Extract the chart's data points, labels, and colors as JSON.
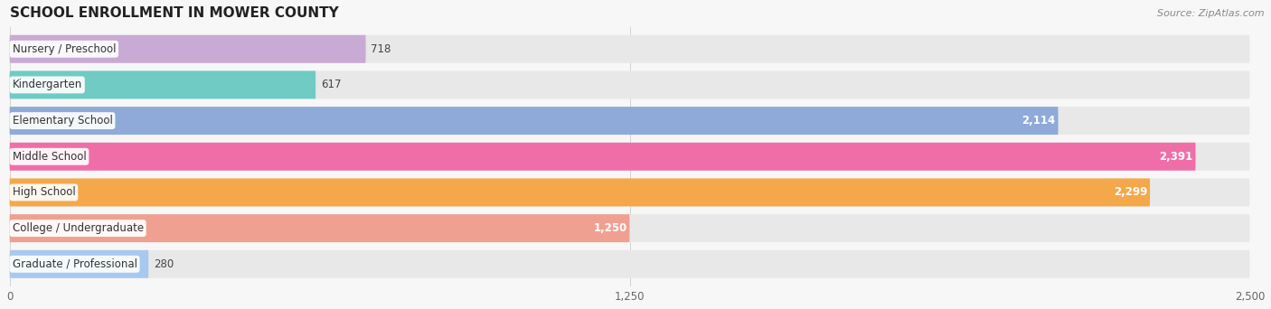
{
  "title": "SCHOOL ENROLLMENT IN MOWER COUNTY",
  "source": "Source: ZipAtlas.com",
  "categories": [
    "Nursery / Preschool",
    "Kindergarten",
    "Elementary School",
    "Middle School",
    "High School",
    "College / Undergraduate",
    "Graduate / Professional"
  ],
  "values": [
    718,
    617,
    2114,
    2391,
    2299,
    1250,
    280
  ],
  "colors": [
    "#c9aad4",
    "#6fcbc4",
    "#8faad8",
    "#f06ea8",
    "#f5a84a",
    "#f0a090",
    "#a8c8f0"
  ],
  "xlim_max": 2500,
  "xticks": [
    0,
    1250,
    2500
  ],
  "background_color": "#f7f7f7",
  "bar_bg_color": "#e8e8e8",
  "title_fontsize": 11,
  "label_fontsize": 8.5,
  "value_fontsize": 8.5,
  "source_fontsize": 8
}
